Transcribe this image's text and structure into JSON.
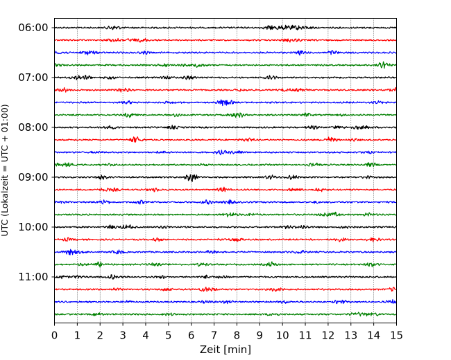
{
  "chart_data": {
    "type": "line",
    "title": "",
    "xlabel": "Zeit  [min]",
    "ylabel": "UTC (Lokalzeit = UTC + 01:00)",
    "xlim": [
      0,
      15
    ],
    "x_ticks": [
      "0",
      "1",
      "2",
      "3",
      "4",
      "5",
      "6",
      "7",
      "8",
      "9",
      "10",
      "11",
      "12",
      "13",
      "14",
      "15"
    ],
    "y_ticks": [
      "06:00",
      "07:00",
      "08:00",
      "09:00",
      "10:00",
      "11:00"
    ],
    "grid": "vertical dotted",
    "legend": "none",
    "series_colors": [
      "#000000",
      "#ff0000",
      "#0000ff",
      "#008000"
    ],
    "traces": [
      {
        "start": "06:00",
        "color": "#000000"
      },
      {
        "start": "06:15",
        "color": "#ff0000"
      },
      {
        "start": "06:30",
        "color": "#0000ff"
      },
      {
        "start": "06:45",
        "color": "#008000"
      },
      {
        "start": "07:00",
        "color": "#000000"
      },
      {
        "start": "07:15",
        "color": "#ff0000"
      },
      {
        "start": "07:30",
        "color": "#0000ff"
      },
      {
        "start": "07:45",
        "color": "#008000"
      },
      {
        "start": "08:00",
        "color": "#000000"
      },
      {
        "start": "08:15",
        "color": "#ff0000"
      },
      {
        "start": "08:30",
        "color": "#0000ff"
      },
      {
        "start": "08:45",
        "color": "#008000"
      },
      {
        "start": "09:00",
        "color": "#000000"
      },
      {
        "start": "09:15",
        "color": "#ff0000"
      },
      {
        "start": "09:30",
        "color": "#0000ff"
      },
      {
        "start": "09:45",
        "color": "#008000"
      },
      {
        "start": "10:00",
        "color": "#000000"
      },
      {
        "start": "10:15",
        "color": "#ff0000"
      },
      {
        "start": "10:30",
        "color": "#0000ff"
      },
      {
        "start": "10:45",
        "color": "#008000"
      },
      {
        "start": "11:00",
        "color": "#000000"
      },
      {
        "start": "11:15",
        "color": "#ff0000"
      },
      {
        "start": "11:30",
        "color": "#0000ff"
      },
      {
        "start": "11:45",
        "color": "#008000"
      }
    ]
  }
}
